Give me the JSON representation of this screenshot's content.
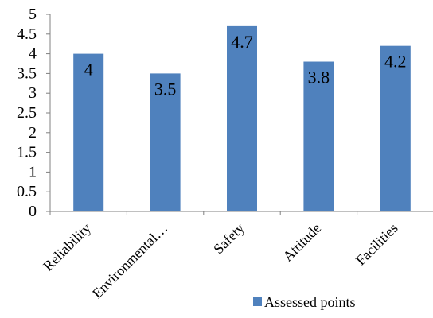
{
  "chart_data": {
    "type": "bar",
    "title": "",
    "xlabel": "",
    "ylabel": "",
    "categories": [
      "Reliability",
      "Environmental…",
      "Safety",
      "Attitude",
      "Facilities"
    ],
    "series": [
      {
        "name": "Assessed points",
        "values": [
          4,
          3.5,
          4.7,
          3.8,
          4.2
        ]
      }
    ],
    "data_labels": [
      "4",
      "3.5",
      "4.7",
      "3.8",
      "4.2"
    ],
    "ylim": [
      0,
      5
    ],
    "yticks": [
      "0",
      "0.5",
      "1",
      "1.5",
      "2",
      "2.5",
      "3",
      "3.5",
      "4",
      "4.5",
      "5"
    ],
    "grid": false,
    "legend_position": "bottom-right",
    "colors": {
      "bar": "#4F81BD",
      "axis": "#808080"
    }
  }
}
